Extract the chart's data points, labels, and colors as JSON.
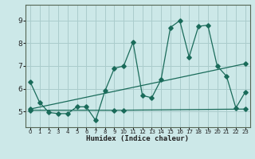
{
  "title": "",
  "xlabel": "Humidex (Indice chaleur)",
  "bg_color": "#cce8e8",
  "grid_color": "#aacccc",
  "line_color": "#1a6b5a",
  "xlim": [
    -0.5,
    23.5
  ],
  "ylim": [
    4.3,
    9.7
  ],
  "yticks": [
    5,
    6,
    7,
    8,
    9
  ],
  "xticks": [
    0,
    1,
    2,
    3,
    4,
    5,
    6,
    7,
    8,
    9,
    10,
    11,
    12,
    13,
    14,
    15,
    16,
    17,
    18,
    19,
    20,
    21,
    22,
    23
  ],
  "line1_x": [
    0,
    1,
    2,
    3,
    4,
    5,
    6,
    7,
    8,
    9,
    10,
    11,
    12,
    13,
    14,
    15,
    16,
    17,
    18,
    19,
    20,
    21,
    22,
    23
  ],
  "line1_y": [
    6.3,
    5.4,
    4.95,
    4.9,
    4.9,
    5.2,
    5.2,
    4.6,
    5.9,
    6.9,
    7.0,
    8.05,
    5.7,
    5.6,
    6.4,
    8.7,
    9.0,
    7.4,
    8.75,
    8.8,
    7.0,
    6.55,
    5.15,
    5.85
  ],
  "line2_x": [
    0,
    9,
    10,
    23
  ],
  "line2_y": [
    5.05,
    5.05,
    5.05,
    5.1
  ],
  "line3_x": [
    0,
    23
  ],
  "line3_y": [
    5.1,
    7.1
  ]
}
